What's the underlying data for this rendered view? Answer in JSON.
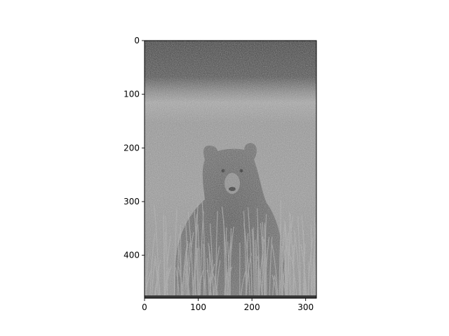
{
  "figure": {
    "description_free": true
  },
  "image": {
    "subject": "bear-in-grass-photo",
    "colormap": "gray",
    "colors": {
      "dark_treeline": "#4a4a4a",
      "light_band": "#a8a8a8",
      "grass": "#9a9a9a",
      "bear": "#5e5e5e",
      "frame": "#000000"
    }
  },
  "axes": {
    "x_ticks": [
      "0",
      "100",
      "200",
      "300"
    ],
    "y_ticks": [
      "0",
      "100",
      "200",
      "300",
      "400"
    ],
    "x_tick_values": [
      0,
      100,
      200,
      300
    ],
    "y_tick_values": [
      0,
      100,
      200,
      300,
      400
    ],
    "xlim": [
      0,
      320
    ],
    "ylim": [
      480,
      0
    ],
    "grid": false
  }
}
